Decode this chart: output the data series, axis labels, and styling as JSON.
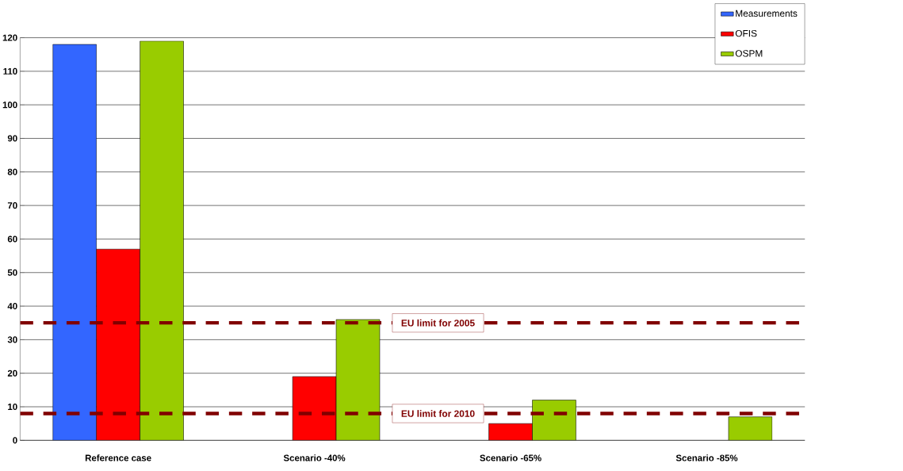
{
  "chart_data": {
    "type": "bar",
    "categories": [
      "Reference case",
      "Scenario -40%",
      "Scenario -65%",
      "Scenario -85%"
    ],
    "series": [
      {
        "name": "Measurements",
        "color": "#3366ff",
        "values": [
          118,
          null,
          null,
          null
        ]
      },
      {
        "name": "OFIS",
        "color": "#ff0000",
        "values": [
          57,
          19,
          5,
          null
        ]
      },
      {
        "name": "OSPM",
        "color": "#99cc00",
        "values": [
          119,
          36,
          12,
          7
        ]
      }
    ],
    "ylim": [
      0,
      120
    ],
    "yticks": [
      0,
      10,
      20,
      30,
      40,
      50,
      60,
      70,
      80,
      90,
      100,
      110,
      120
    ],
    "grid": "y",
    "legend": "top right",
    "ref_lines": [
      {
        "axis": "y",
        "value": 35,
        "label": "EU limit for 2005",
        "color": "#800000",
        "line_style": "dashed"
      },
      {
        "axis": "y",
        "value": 8,
        "label": "EU limit for 2010",
        "color": "#800000",
        "line_style": "dashed"
      }
    ]
  }
}
